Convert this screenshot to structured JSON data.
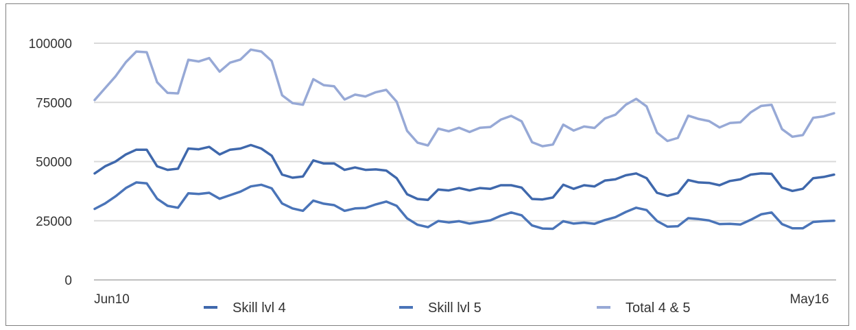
{
  "chart_data": {
    "type": "line",
    "x_labels": {
      "first": "Jun10",
      "last": "May16"
    },
    "y_ticks": [
      0,
      25000,
      50000,
      75000,
      100000
    ],
    "ylim": [
      0,
      100000
    ],
    "grid": "horizontal",
    "legend_placement": "bottom",
    "series": [
      {
        "name": "Skill lvl 4",
        "color": "#3f68ac",
        "values": [
          45000,
          48000,
          50000,
          53000,
          55000,
          55000,
          48000,
          46500,
          47000,
          55500,
          55200,
          56200,
          53000,
          55000,
          55500,
          57000,
          55500,
          52500,
          44500,
          43200,
          43700,
          50500,
          49200,
          49200,
          46500,
          47500,
          46500,
          46700,
          46200,
          43000,
          36200,
          34200,
          33800,
          38200,
          37800,
          38800,
          37800,
          38800,
          38500,
          40000,
          40000,
          39000,
          34200,
          34000,
          34800,
          40200,
          38500,
          40000,
          39500,
          42000,
          42500,
          44200,
          45000,
          43000,
          36800,
          35500,
          36700,
          42200,
          41200,
          41000,
          40000,
          41800,
          42500,
          44500,
          45000,
          44800,
          39000,
          37600,
          38500,
          43000,
          43500,
          44500
        ]
      },
      {
        "name": "Skill lvl 5",
        "color": "#4a74b8",
        "values": [
          30000,
          32300,
          35300,
          38800,
          41200,
          40800,
          34300,
          31300,
          30500,
          36600,
          36300,
          36800,
          34300,
          35800,
          37300,
          39500,
          40200,
          38700,
          32300,
          30200,
          29200,
          33500,
          32200,
          31600,
          29200,
          30200,
          30400,
          31900,
          33100,
          31300,
          26000,
          23300,
          22300,
          24900,
          24300,
          24800,
          23800,
          24500,
          25200,
          27100,
          28500,
          27300,
          23000,
          21700,
          21600,
          24800,
          23800,
          24200,
          23700,
          25300,
          26500,
          28700,
          30500,
          29500,
          24900,
          22500,
          22700,
          26100,
          25700,
          25100,
          23600,
          23700,
          23400,
          25400,
          27700,
          28500,
          23600,
          21800,
          21800,
          24500,
          24800,
          25000
        ]
      },
      {
        "name": "Total 4 & 5",
        "color": "#97a9d6",
        "values": [
          76000,
          81000,
          86000,
          92000,
          96500,
          96200,
          83500,
          79000,
          78800,
          93000,
          92300,
          93700,
          88000,
          91800,
          93100,
          97300,
          96500,
          92500,
          78000,
          74700,
          74000,
          84800,
          82300,
          81800,
          76200,
          78300,
          77500,
          79300,
          80300,
          75300,
          63000,
          58000,
          56800,
          63900,
          62800,
          64300,
          62500,
          64300,
          64600,
          67700,
          69300,
          67000,
          58200,
          56500,
          57200,
          65600,
          63100,
          64800,
          64200,
          68200,
          69800,
          74000,
          76500,
          73300,
          62200,
          58700,
          60000,
          69400,
          68000,
          67100,
          64400,
          66300,
          66600,
          70800,
          73500,
          74000,
          63700,
          60500,
          61200,
          68500,
          69100,
          70400
        ]
      }
    ]
  }
}
